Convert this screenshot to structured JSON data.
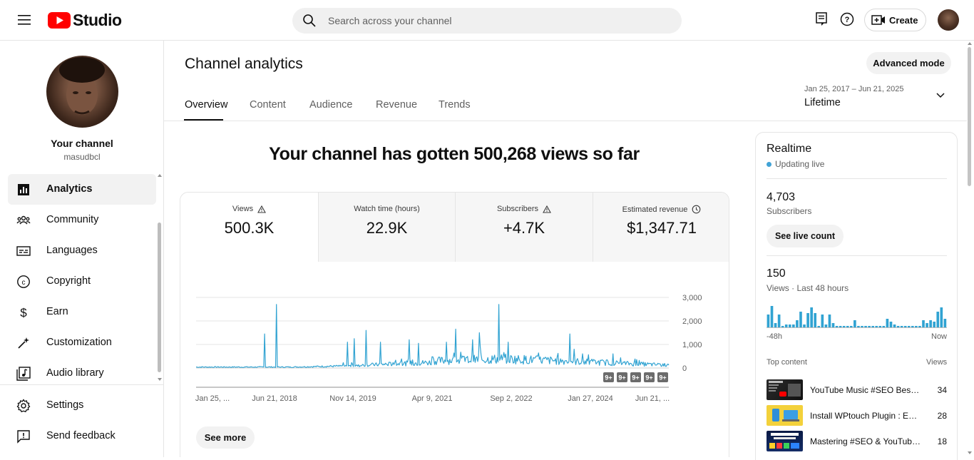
{
  "header": {
    "logo_text": "Studio",
    "search_placeholder": "Search across your channel",
    "create_label": "Create",
    "brand_color": "#ff0000"
  },
  "sidebar": {
    "channel_name": "Your channel",
    "channel_handle": "masudbcl",
    "items": [
      {
        "label": "Analytics",
        "icon": "analytics-icon",
        "active": true
      },
      {
        "label": "Community",
        "icon": "community-icon"
      },
      {
        "label": "Languages",
        "icon": "languages-icon"
      },
      {
        "label": "Copyright",
        "icon": "copyright-icon"
      },
      {
        "label": "Earn",
        "icon": "dollar-icon"
      },
      {
        "label": "Customization",
        "icon": "magic-wand-icon"
      },
      {
        "label": "Audio library",
        "icon": "audio-library-icon"
      }
    ],
    "bottom": [
      {
        "label": "Settings",
        "icon": "gear-icon"
      },
      {
        "label": "Send feedback",
        "icon": "feedback-icon"
      }
    ]
  },
  "main": {
    "title": "Channel analytics",
    "advanced_label": "Advanced mode",
    "tabs": [
      "Overview",
      "Content",
      "Audience",
      "Revenue",
      "Trends"
    ],
    "date_range": "Jan 25, 2017 – Jun 21, 2025",
    "date_value": "Lifetime",
    "headline": "Your channel has gotten 500,268 views so far",
    "metrics": [
      {
        "label": "Views",
        "value": "500.3K",
        "icon": "warning-icon"
      },
      {
        "label": "Watch time (hours)",
        "value": "22.9K",
        "icon": ""
      },
      {
        "label": "Subscribers",
        "value": "+4.7K",
        "icon": "warning-icon"
      },
      {
        "label": "Estimated revenue",
        "value": "$1,347.71",
        "icon": "clock-icon"
      }
    ],
    "see_more": "See more",
    "badge_label": "9+"
  },
  "chart_data": {
    "type": "line",
    "color": "#31a3d2",
    "x_ticks": [
      "Jan 25, ...",
      "Jun 21, 2018",
      "Nov 14, 2019",
      "Apr 9, 2021",
      "Sep 2, 2022",
      "Jan 27, 2024",
      "Jun 21, ..."
    ],
    "y_ticks": [
      "3,000",
      "2,000",
      "1,000",
      "0"
    ],
    "ylim": [
      0,
      3000
    ],
    "spikes": [
      {
        "t": 0.145,
        "v": 1450
      },
      {
        "t": 0.17,
        "v": 2700
      },
      {
        "t": 0.32,
        "v": 1100
      },
      {
        "t": 0.335,
        "v": 1250
      },
      {
        "t": 0.36,
        "v": 1600
      },
      {
        "t": 0.39,
        "v": 1100
      },
      {
        "t": 0.45,
        "v": 1200
      },
      {
        "t": 0.47,
        "v": 1050
      },
      {
        "t": 0.53,
        "v": 1100
      },
      {
        "t": 0.55,
        "v": 1650
      },
      {
        "t": 0.585,
        "v": 1200
      },
      {
        "t": 0.6,
        "v": 1500
      },
      {
        "t": 0.64,
        "v": 2700
      },
      {
        "t": 0.66,
        "v": 1100
      },
      {
        "t": 0.79,
        "v": 1450
      },
      {
        "t": 0.8,
        "v": 800
      }
    ],
    "markers": 5
  },
  "realtime": {
    "title": "Realtime",
    "status": "Updating live",
    "subscribers_value": "4,703",
    "subscribers_label": "Subscribers",
    "live_count_label": "See live count",
    "views_value": "150",
    "views_label": "Views · Last 48 hours",
    "mini_start": "-48h",
    "mini_end": "Now",
    "mini_bars": [
      9,
      15,
      3,
      9,
      1,
      2,
      2,
      2,
      5,
      11,
      2,
      10,
      14,
      10,
      1,
      9,
      2,
      9,
      3,
      1,
      1,
      1,
      1,
      1,
      5,
      1,
      1,
      1,
      1,
      1,
      1,
      1,
      1,
      6,
      4,
      2,
      1,
      1,
      1,
      1,
      1,
      1,
      1,
      5,
      3,
      5,
      4,
      11,
      14,
      6
    ],
    "top_content_label": "Top content",
    "views_col_label": "Views",
    "top_content": [
      {
        "title": "YouTube Music #SEO Best ...",
        "views": "34",
        "thumb": "#1a1a1a"
      },
      {
        "title": "Install WPtouch Plugin : Eng...",
        "views": "28",
        "thumb": "#f3d13b"
      },
      {
        "title": "Mastering #SEO & YouTube ...",
        "views": "18",
        "thumb": "#0d1f4a"
      }
    ]
  }
}
